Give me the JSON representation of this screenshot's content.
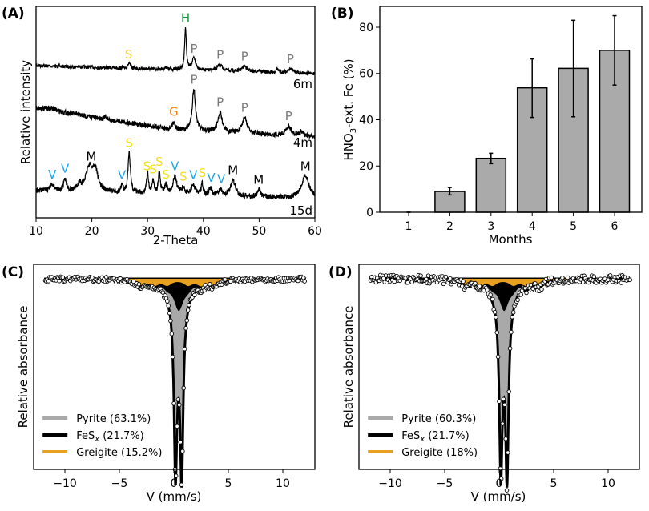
{
  "chart_data": [
    {
      "panel": "(A)",
      "type": "line",
      "xlabel": "2-Theta",
      "ylabel": "Relative intensity",
      "xlim": [
        10,
        60
      ],
      "xticks": [
        10,
        20,
        30,
        40,
        50,
        60
      ],
      "grid": false,
      "series": [
        {
          "name": "6m",
          "peaks": [
            {
              "x": 26.6,
              "label": "S"
            },
            {
              "x": 36.8,
              "label": "H"
            },
            {
              "x": 38.3,
              "label": "P"
            },
            {
              "x": 43.0,
              "label": "P"
            },
            {
              "x": 47.4,
              "label": "P"
            },
            {
              "x": 55.6,
              "label": "P"
            }
          ]
        },
        {
          "name": "4m",
          "peaks": [
            {
              "x": 34.7,
              "label": "G"
            },
            {
              "x": 38.3,
              "label": "P"
            },
            {
              "x": 43.0,
              "label": "P"
            },
            {
              "x": 47.4,
              "label": "P"
            },
            {
              "x": 55.3,
              "label": "P"
            }
          ]
        },
        {
          "name": "15d",
          "peaks": [
            {
              "x": 12.9,
              "label": "V"
            },
            {
              "x": 15.2,
              "label": "V"
            },
            {
              "x": 19.9,
              "label": "M"
            },
            {
              "x": 25.4,
              "label": "V"
            },
            {
              "x": 26.7,
              "label": "S"
            },
            {
              "x": 29.9,
              "label": "S"
            },
            {
              "x": 31.0,
              "label": "S"
            },
            {
              "x": 32.1,
              "label": "S"
            },
            {
              "x": 33.3,
              "label": "S"
            },
            {
              "x": 34.9,
              "label": "V"
            },
            {
              "x": 36.4,
              "label": "S"
            },
            {
              "x": 38.2,
              "label": "V"
            },
            {
              "x": 39.8,
              "label": "S"
            },
            {
              "x": 41.4,
              "label": "V"
            },
            {
              "x": 43.2,
              "label": "V"
            },
            {
              "x": 45.3,
              "label": "M"
            },
            {
              "x": 49.9,
              "label": "M"
            },
            {
              "x": 58.3,
              "label": "M"
            }
          ]
        }
      ],
      "label_colors": {
        "S": "#f2df1c",
        "V": "#1ca6ea",
        "M": "#000000",
        "P": "#7a7a7a",
        "G": "#f0800e",
        "H": "#1a9641"
      }
    },
    {
      "panel": "(B)",
      "type": "bar",
      "xlabel": "Months",
      "ylabel_main": "HNO",
      "ylabel_sub": "3",
      "ylabel_rest": "-ext. Fe (%)",
      "categories": [
        "1",
        "2",
        "3",
        "4",
        "5",
        "6"
      ],
      "values": [
        0,
        9,
        23.3,
        53.8,
        62.2,
        70
      ],
      "error_low": [
        0,
        7.5,
        21,
        41,
        41.3,
        55
      ],
      "error_high": [
        0,
        10.7,
        25.5,
        66.3,
        83,
        85
      ],
      "ylim": [
        0,
        89
      ],
      "yticks": [
        0,
        20,
        40,
        60,
        80
      ],
      "bar_color": "#a9aaa9",
      "grid": false
    },
    {
      "panel": "(C)",
      "type": "line",
      "xlabel": "V (mm/s)",
      "ylabel": "Relative absorbance",
      "xlim": [
        -13,
        13
      ],
      "xticks": [
        "−10",
        "−5",
        "0",
        "5",
        "10"
      ],
      "legend_position": "bottom-left",
      "components": [
        {
          "name": "Pyrite",
          "pct": "(63.1%)",
          "color": "#a9a9a9"
        },
        {
          "name": "FeS",
          "sub": "x",
          "pct": "(21.7%)",
          "color": "#000000"
        },
        {
          "name": "Greigite",
          "pct": "(15.2%)",
          "color": "#e8a020"
        }
      ]
    },
    {
      "panel": "(D)",
      "type": "line",
      "xlabel": "V (mm/s)",
      "ylabel": "Relative absorbance",
      "xlim": [
        -13,
        13
      ],
      "xticks": [
        "−10",
        "−5",
        "0",
        "5",
        "10"
      ],
      "legend_position": "bottom-left",
      "components": [
        {
          "name": "Pyrite",
          "pct": "(60.3%)",
          "color": "#a9a9a9"
        },
        {
          "name": "FeS",
          "sub": "x",
          "pct": "(21.7%)",
          "color": "#000000"
        },
        {
          "name": "Greigite",
          "pct": "(18%)",
          "color": "#e8a020"
        }
      ]
    }
  ]
}
